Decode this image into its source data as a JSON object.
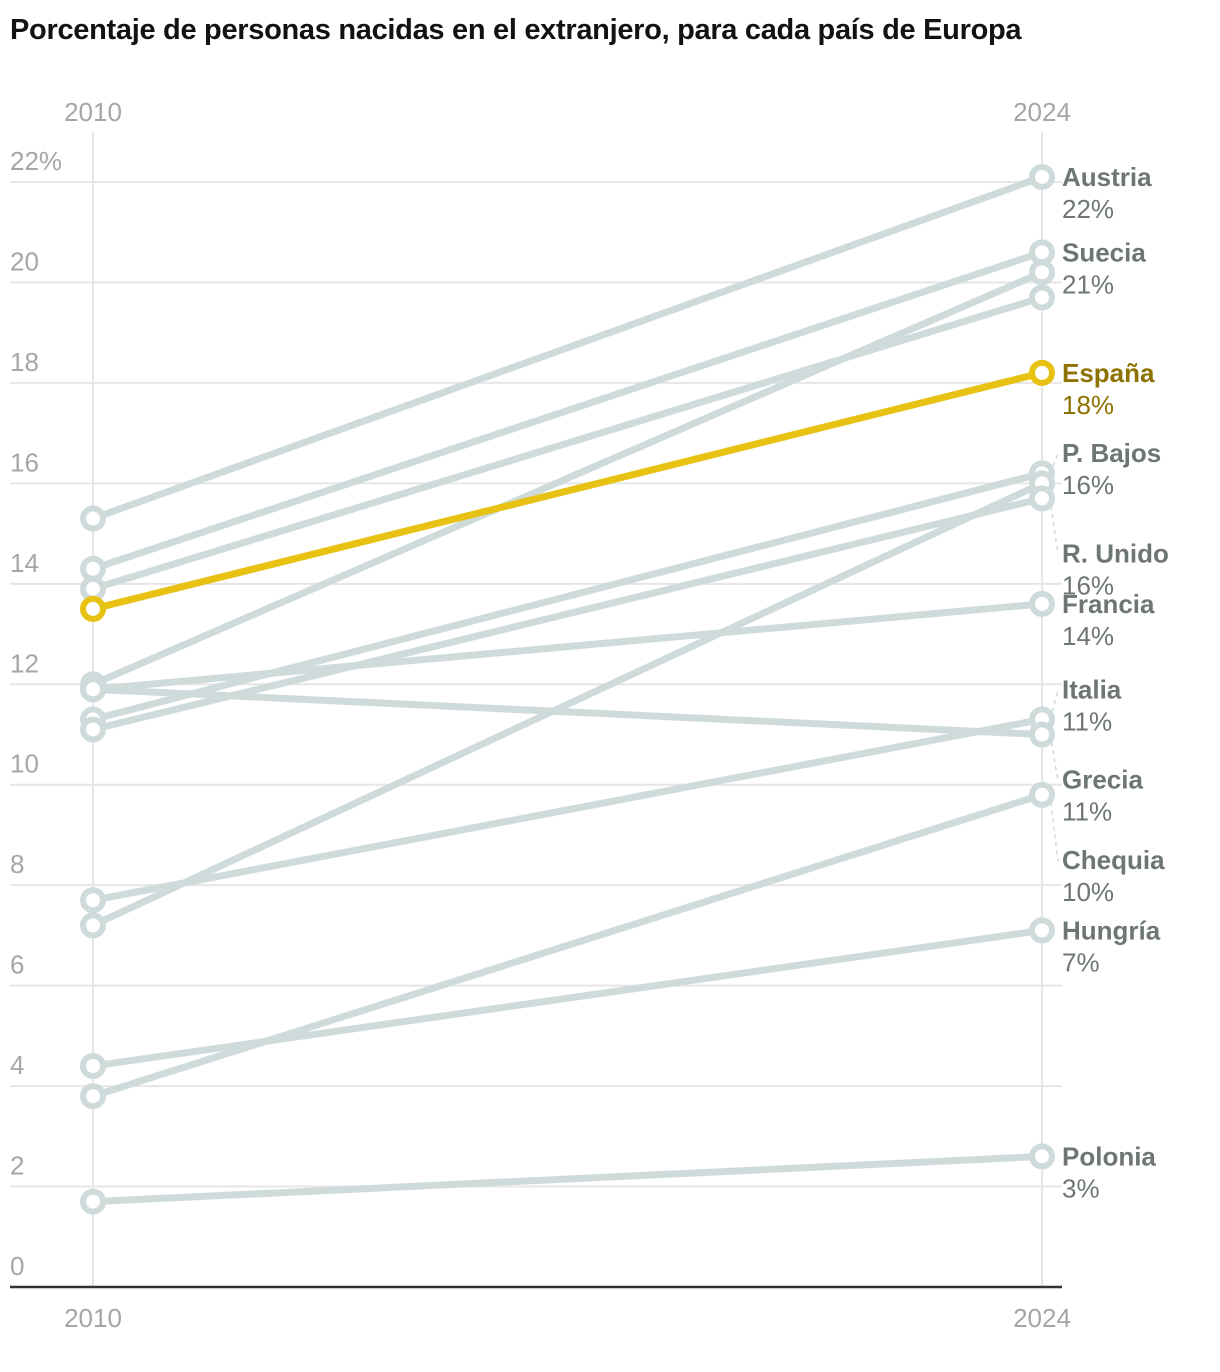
{
  "title": "Porcentaje de personas nacidas en el extranjero, para cada país de Europa",
  "colors": {
    "highlight": "#e8c213",
    "highlight_text": "#8e7200",
    "muted_line": "#cfdbdb",
    "label_text": "#6e7675",
    "grid": "#e6e6e6",
    "axis": "#333333",
    "tick_text": "#a6a6a6"
  },
  "chart_data": {
    "type": "line",
    "subtype": "slope",
    "title": "Porcentaje de personas nacidas en el extranjero, para cada país de Europa",
    "x": [
      "2010",
      "2024"
    ],
    "x_top_labels": [
      "2010",
      "2024"
    ],
    "x_bottom_labels": [
      "2010",
      "2024"
    ],
    "xlabel": "",
    "ylabel": "",
    "ylim": [
      0,
      22
    ],
    "yticks": [
      0,
      2,
      4,
      6,
      8,
      10,
      12,
      14,
      16,
      18,
      20,
      22
    ],
    "ytick_labels": [
      "0",
      "2",
      "4",
      "6",
      "8",
      "10",
      "12",
      "14",
      "16",
      "18",
      "20",
      "22%"
    ],
    "grid": true,
    "legend": "direct-labels-right",
    "series": [
      {
        "name": "Austria",
        "label": "Austria",
        "value_label": "22%",
        "values": [
          15.3,
          22.1
        ],
        "highlight": false,
        "label_offset": 0
      },
      {
        "name": "Suecia",
        "label": "Suecia",
        "value_label": "21%",
        "values": [
          14.3,
          20.6
        ],
        "highlight": false,
        "label_offset": 0
      },
      {
        "name": "",
        "label": "",
        "value_label": "",
        "values": [
          12.0,
          20.2
        ],
        "highlight": false
      },
      {
        "name": "",
        "label": "",
        "value_label": "",
        "values": [
          13.9,
          19.7
        ],
        "highlight": false
      },
      {
        "name": "España",
        "label": "España",
        "value_label": "18%",
        "values": [
          13.5,
          18.2
        ],
        "highlight": true,
        "label_offset": 0
      },
      {
        "name": "P. Bajos",
        "label": "P. Bajos",
        "value_label": "16%",
        "values": [
          11.3,
          16.2
        ],
        "highlight": false,
        "label_offset": -0.4,
        "leader": true
      },
      {
        "name": "",
        "label": "",
        "value_label": "",
        "values": [
          7.2,
          16.0
        ],
        "highlight": false
      },
      {
        "name": "R. Unido",
        "label": "R. Unido",
        "value_label": "16%",
        "values": [
          11.1,
          15.7
        ],
        "highlight": false,
        "label_offset": 1.1,
        "leader": true
      },
      {
        "name": "Francia",
        "label": "Francia",
        "value_label": "14%",
        "values": [
          11.9,
          13.6
        ],
        "highlight": false,
        "label_offset": 0
      },
      {
        "name": "Italia",
        "label": "Italia",
        "value_label": "11%",
        "values": [
          7.7,
          11.3
        ],
        "highlight": false,
        "label_offset": -0.6,
        "leader": true
      },
      {
        "name": "Grecia",
        "label": "Grecia",
        "value_label": "11%",
        "values": [
          11.9,
          11.0
        ],
        "highlight": false,
        "label_offset": 0.9,
        "leader": true
      },
      {
        "name": "Chequia",
        "label": "Chequia",
        "value_label": "10%",
        "values": [
          3.8,
          9.8
        ],
        "highlight": false,
        "label_offset": 1.3,
        "leader": true
      },
      {
        "name": "Hungría",
        "label": "Hungría",
        "value_label": "7%",
        "values": [
          4.4,
          7.1
        ],
        "highlight": false,
        "label_offset": 0
      },
      {
        "name": "Polonia",
        "label": "Polonia",
        "value_label": "3%",
        "values": [
          1.7,
          2.6
        ],
        "highlight": false,
        "label_offset": 0
      }
    ]
  }
}
